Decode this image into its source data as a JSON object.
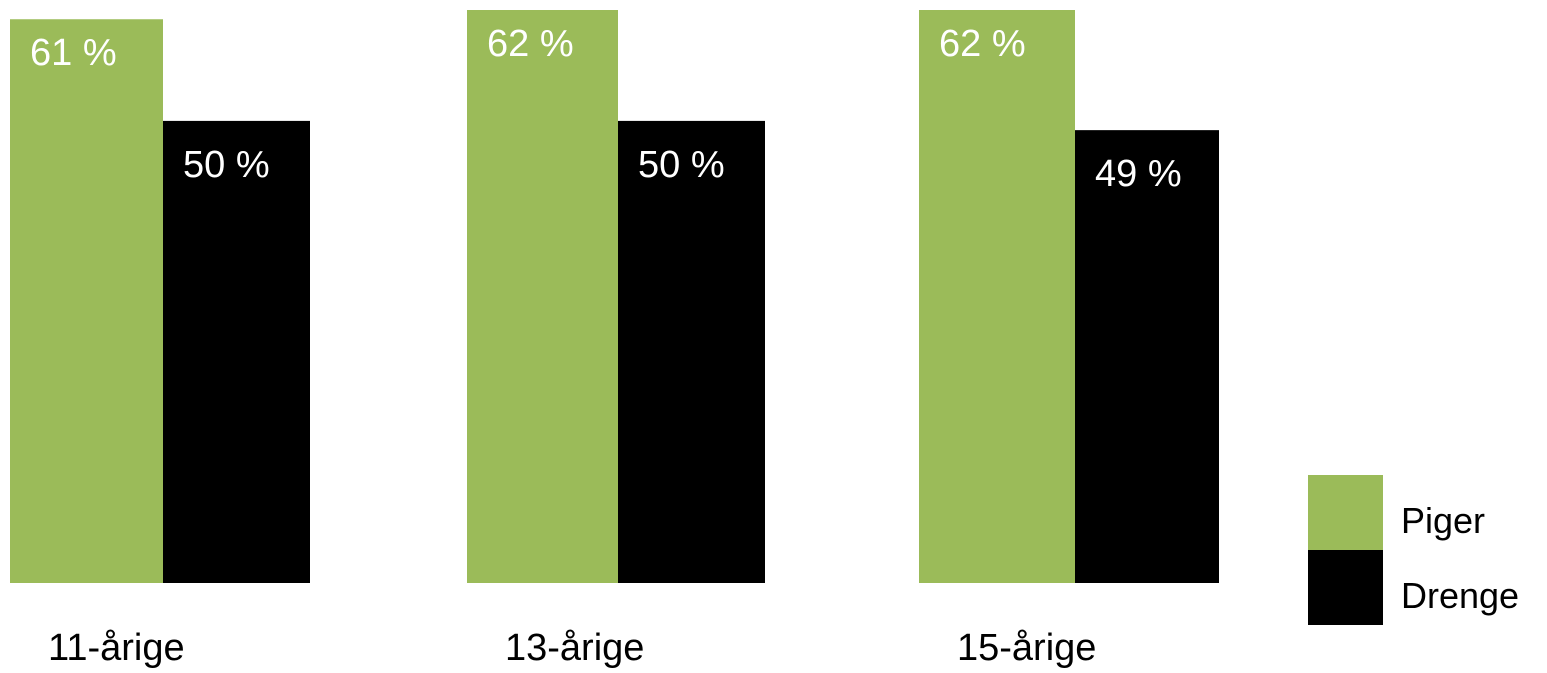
{
  "chart_data": {
    "type": "bar",
    "title": "",
    "xlabel": "",
    "ylabel": "",
    "categories": [
      "11-årige",
      "13-årige",
      "15-årige"
    ],
    "series": [
      {
        "name": "Piger",
        "color": "#9bbb59",
        "values": [
          61,
          62,
          62
        ],
        "labels": [
          "61 %",
          "62 %",
          "62 %"
        ]
      },
      {
        "name": "Drenge",
        "color": "#000000",
        "values": [
          50,
          50,
          49
        ],
        "labels": [
          "50 %",
          "50 %",
          "49 %"
        ]
      }
    ],
    "ylim": [
      0,
      62
    ],
    "grid": false,
    "legend": "bottom-right",
    "label_color": "#ffffff",
    "text_color": "#000000"
  }
}
